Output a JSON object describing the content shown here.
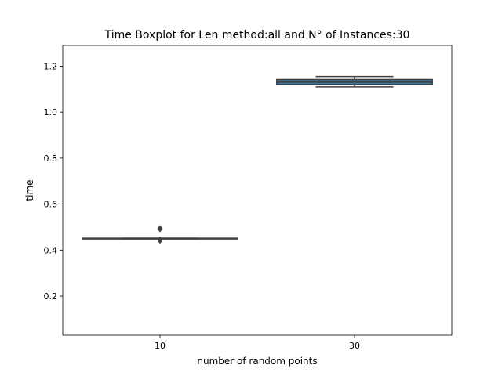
{
  "chart_data": {
    "type": "boxplot",
    "title": "Time Boxplot for Len method:all and N° of Instances:30",
    "xlabel": "number of random points",
    "ylabel": "time",
    "categories": [
      "10",
      "30"
    ],
    "ylim": [
      0.03,
      1.29
    ],
    "yticks": [
      0.2,
      0.4,
      0.6,
      0.8,
      1.0,
      1.2
    ],
    "ytick_labels": [
      "0.2",
      "0.4",
      "0.6",
      "0.8",
      "1.0",
      "1.2"
    ],
    "boxes": [
      {
        "category": "10",
        "q1": 0.449,
        "median": 0.451,
        "q3": 0.452,
        "whisker_low": 0.449,
        "whisker_high": 0.452,
        "outliers": [
          0.493,
          0.443
        ]
      },
      {
        "category": "30",
        "q1": 1.12,
        "median": 1.131,
        "q3": 1.142,
        "whisker_low": 1.11,
        "whisker_high": 1.155,
        "outliers": []
      }
    ],
    "colors": {
      "box_10": "#3274a1",
      "box_30": "#3274a1",
      "lines": "#404040",
      "axes": "#000000"
    }
  }
}
